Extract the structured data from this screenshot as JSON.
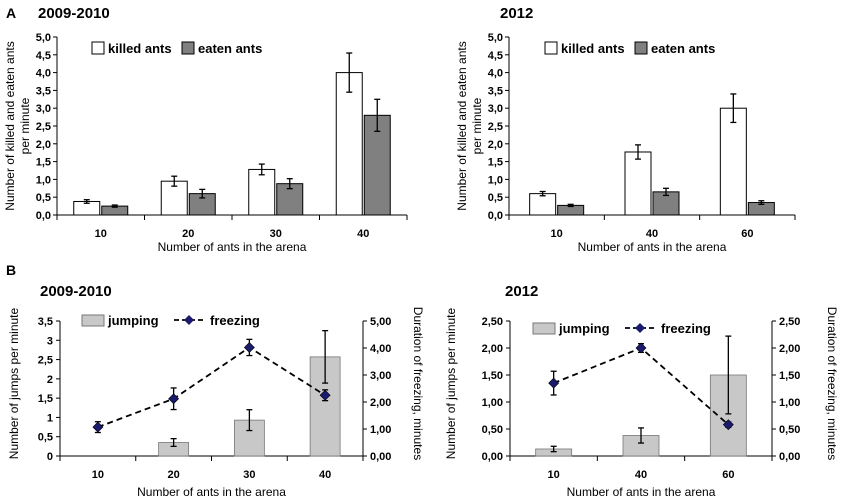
{
  "panel_labels": {
    "A": "A",
    "B": "B"
  },
  "chart_data": [
    {
      "type": "bar",
      "title": "2009-2010",
      "xlabel": "Number of ants in the arena",
      "ylabel_lines": [
        "Number of killed and eaten ants",
        "per minute"
      ],
      "categories": [
        "10",
        "20",
        "30",
        "40"
      ],
      "ylim": [
        0,
        5
      ],
      "yticks": [
        "0,0",
        "0,5",
        "1,0",
        "1,5",
        "2,0",
        "2,5",
        "3,0",
        "3,5",
        "4,0",
        "4,5",
        "5,0"
      ],
      "series": [
        {
          "name": "killed ants",
          "color": "#ffffff",
          "values": [
            0.38,
            0.95,
            1.28,
            4.0
          ],
          "errors": [
            0.05,
            0.14,
            0.15,
            0.55
          ]
        },
        {
          "name": "eaten ants",
          "color": "#808080",
          "values": [
            0.25,
            0.6,
            0.88,
            2.8
          ],
          "errors": [
            0.03,
            0.12,
            0.14,
            0.45
          ]
        }
      ]
    },
    {
      "type": "bar",
      "title": "2012",
      "xlabel": "Number of ants in the arena",
      "ylabel_lines": [
        "Number of killed and eaten ants",
        "per minute"
      ],
      "categories": [
        "10",
        "40",
        "60"
      ],
      "ylim": [
        0,
        5
      ],
      "yticks": [
        "0,0",
        "0,5",
        "1,0",
        "1,5",
        "2,0",
        "2,5",
        "3,0",
        "3,5",
        "4,0",
        "4,5",
        "5,0"
      ],
      "series": [
        {
          "name": "killed ants",
          "color": "#ffffff",
          "values": [
            0.6,
            1.77,
            3.0
          ],
          "errors": [
            0.06,
            0.2,
            0.4
          ]
        },
        {
          "name": "eaten ants",
          "color": "#808080",
          "values": [
            0.27,
            0.65,
            0.35
          ],
          "errors": [
            0.03,
            0.1,
            0.05
          ]
        }
      ]
    },
    {
      "type": "bar+line",
      "title": "2009-2010",
      "xlabel": "Number of ants in the arena",
      "ylabel": "Number of jumps per minute",
      "y2label": "Duration of freezing, minutes",
      "categories": [
        "10",
        "20",
        "30",
        "40"
      ],
      "ylim": [
        0,
        3.5
      ],
      "y2lim": [
        0,
        5
      ],
      "yticks": [
        "0",
        "0,5",
        "1",
        "1,5",
        "2",
        "2,5",
        "3",
        "3,5"
      ],
      "y2ticks": [
        "0,00",
        "1,00",
        "2,00",
        "3,00",
        "4,00",
        "5,00"
      ],
      "bar_series": {
        "name": "jumping",
        "color": "#c8c8c8",
        "values": [
          0,
          0.35,
          0.93,
          2.57
        ],
        "errors": [
          0,
          0.1,
          0.27,
          0.68
        ]
      },
      "line_series": {
        "name": "freezing",
        "color": "#1a1a6e",
        "values": [
          1.07,
          2.12,
          4.02,
          2.25
        ],
        "errors": [
          0.2,
          0.4,
          0.3,
          0.2
        ]
      }
    },
    {
      "type": "bar+line",
      "title": "2012",
      "xlabel": "Number of ants in the arena",
      "ylabel": "Number of jumps per minute",
      "y2label": "Duration of freezing, minutes",
      "categories": [
        "10",
        "40",
        "60"
      ],
      "ylim": [
        0,
        2.5
      ],
      "y2lim": [
        0,
        2.5
      ],
      "yticks": [
        "0,00",
        "0,50",
        "1,00",
        "1,50",
        "2,00",
        "2,50"
      ],
      "y2ticks": [
        "0,00",
        "0,50",
        "1,00",
        "1,50",
        "2,00",
        "2,50"
      ],
      "bar_series": {
        "name": "jumping",
        "color": "#c8c8c8",
        "values": [
          0.13,
          0.38,
          1.5
        ],
        "errors": [
          0.05,
          0.14,
          0.72
        ]
      },
      "line_series": {
        "name": "freezing",
        "color": "#1a1a6e",
        "values": [
          1.35,
          2.0,
          0.58
        ],
        "errors": [
          0.22,
          0.08,
          0.05
        ]
      }
    }
  ]
}
